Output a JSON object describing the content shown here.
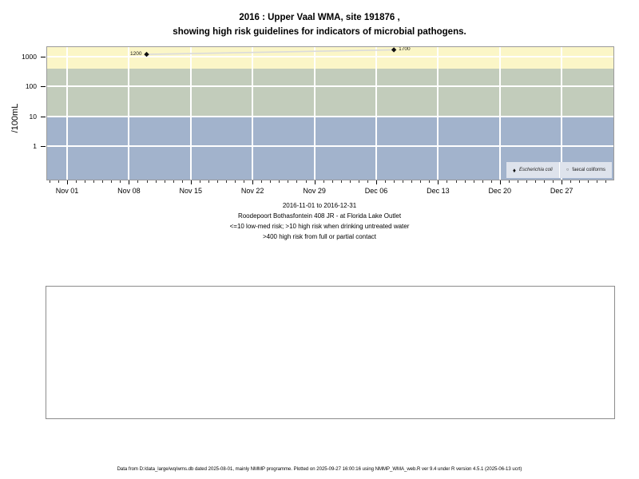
{
  "title": {
    "line1": "2016 : Upper Vaal WMA, site 191876 ,",
    "line2": "showing high risk guidelines for indicators of microbial pathogens."
  },
  "chart_data": {
    "type": "scatter",
    "log_y": true,
    "y_axis_label": "/100mL",
    "ylim": [
      0.075,
      2100
    ],
    "y_ticks": [
      {
        "value": 1,
        "label": "1"
      },
      {
        "value": 10,
        "label": "10"
      },
      {
        "value": 100,
        "label": "100"
      },
      {
        "value": 1000,
        "label": "1000"
      }
    ],
    "x_ticks": [
      {
        "day": 0,
        "label": "Nov 01"
      },
      {
        "day": 7,
        "label": "Nov 08"
      },
      {
        "day": 14,
        "label": "Nov 15"
      },
      {
        "day": 21,
        "label": "Nov 22"
      },
      {
        "day": 28,
        "label": "Nov 29"
      },
      {
        "day": 35,
        "label": "Dec 06"
      },
      {
        "day": 42,
        "label": "Dec 13"
      },
      {
        "day": 49,
        "label": "Dec 20"
      },
      {
        "day": 56,
        "label": "Dec 27"
      }
    ],
    "x_minor_ticks": {
      "from_day": -2,
      "to_day": 61
    },
    "bands": [
      {
        "name": "high-risk-contact",
        "min": 400,
        "max": null,
        "color": "#FBF6C7"
      },
      {
        "name": "high-risk-drinking",
        "min": 10,
        "max": 400,
        "color": "#C2CCBB"
      },
      {
        "name": "low-med-risk",
        "min": null,
        "max": 10,
        "color": "#A2B3CC"
      }
    ],
    "series": [
      {
        "name": "Escherichia coli",
        "marker": "filled-diamond",
        "line_color": "#DBDBDB",
        "marker_color": "#111111",
        "points": [
          {
            "day": 9,
            "date": "2016-11-10",
            "value": 1200,
            "label": "1200",
            "label_side": "left"
          },
          {
            "day": 37,
            "date": "2016-12-08",
            "value": 1700,
            "label": "1700",
            "label_side": "right"
          }
        ]
      },
      {
        "name": "faecal coliforms",
        "marker": "open-circle",
        "points": []
      }
    ]
  },
  "legend": {
    "items": [
      {
        "glyph": "♦",
        "label": "Escherichia coli"
      },
      {
        "glyph": "○",
        "label": "faecal coliforms"
      }
    ]
  },
  "notes": [
    "2016-11-01 to 2016-12-31",
    "Roodepoort Bothasfontein 408 JR - at Florida Lake Outlet",
    "<=10 low-med risk; >10 high risk when drinking untreated water",
    ">400 high risk from full or partial contact"
  ],
  "footer": {
    "text": "Data from D:/data_large/wq/wms.db dated 2025-08-01, mainly NMMP programme. Plotted on 2025-09-27 16:00:16 using NMMP_WMA_web.R ver 9.4 under R version 4.5.1 (2025-06-13 ucrt)"
  }
}
